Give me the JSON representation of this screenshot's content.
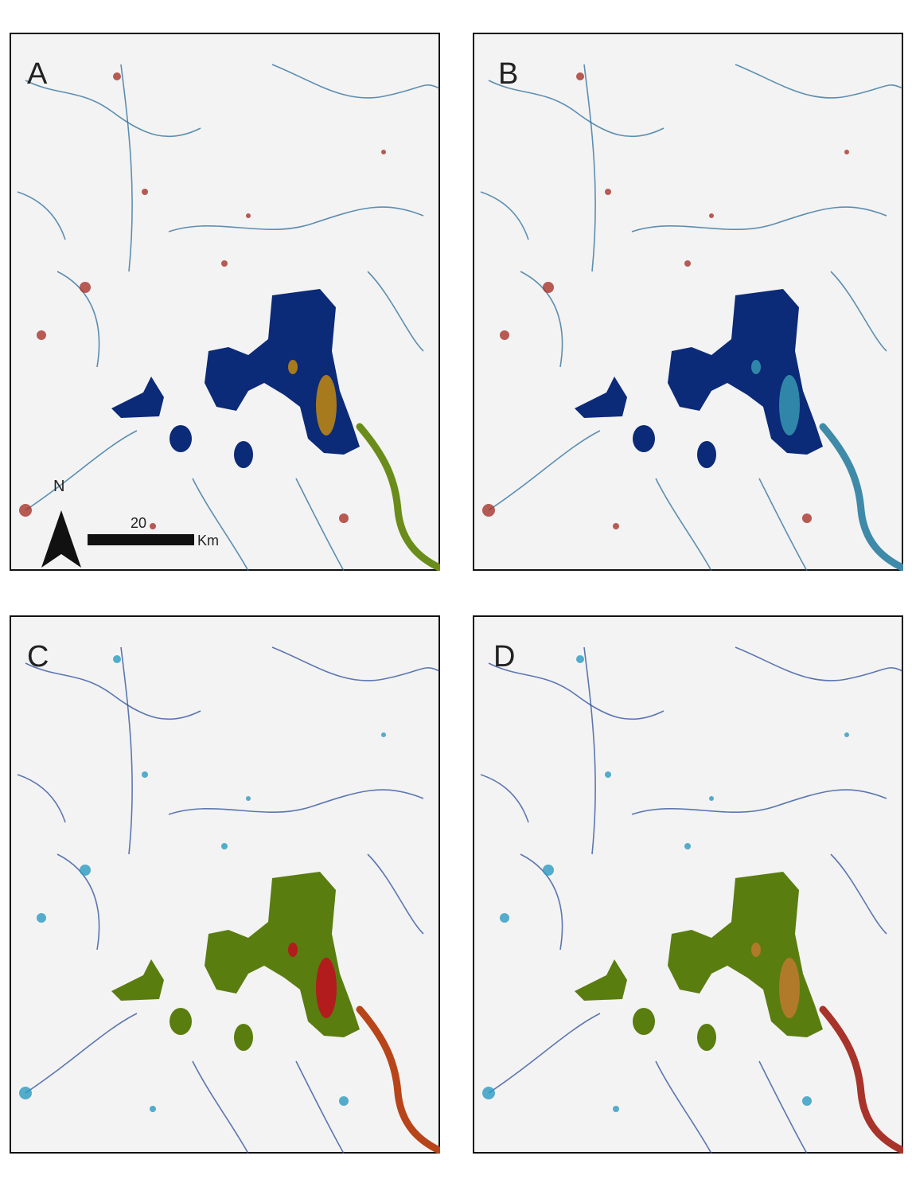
{
  "panels": [
    {
      "label": "A"
    },
    {
      "label": "B"
    },
    {
      "label": "C"
    },
    {
      "label": "D"
    }
  ],
  "north_arrow": {
    "label": "N"
  },
  "scale_bar": {
    "value": "20",
    "unit": "Km"
  }
}
